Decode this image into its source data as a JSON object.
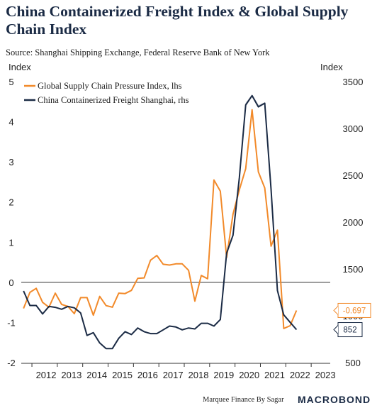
{
  "header": {
    "title": "China Containerized Freight Index & Global Supply Chain Index",
    "source": "Source: Shanghai Shipping Exchange, Federal Reserve Bank of New York"
  },
  "footer": {
    "credit": "Marquee Finance By Sagar",
    "brand": "MACROBOND"
  },
  "colors": {
    "gscpi": "#f28a2a",
    "ccfi": "#1b2b45",
    "ccfi_projection": "#bfc3cc",
    "zero_line": "#333333"
  },
  "chart_data": {
    "type": "line",
    "left_axis_title": "Index",
    "right_axis_title": "Index",
    "x_ticks": [
      "2012",
      "2013",
      "2014",
      "2015",
      "2016",
      "2017",
      "2018",
      "2019",
      "2020",
      "2021",
      "2022",
      "2023"
    ],
    "x_range": [
      2011.58,
      2023.75
    ],
    "left_ylim": [
      -2,
      5
    ],
    "left_ticks": [
      "5",
      "4",
      "3",
      "2",
      "1",
      "0",
      "-1",
      "-2"
    ],
    "right_ylim": [
      500,
      3500
    ],
    "right_ticks": [
      "3500",
      "3000",
      "2500",
      "2000",
      "1500",
      "1000",
      "500"
    ],
    "series": [
      {
        "name": "Global Supply Chain Pressure Index, lhs",
        "axis": "left",
        "color": "#f28a2a",
        "points": [
          [
            2011.67,
            -0.65
          ],
          [
            2011.92,
            -0.25
          ],
          [
            2012.17,
            -0.15
          ],
          [
            2012.42,
            -0.5
          ],
          [
            2012.67,
            -0.62
          ],
          [
            2012.92,
            -0.27
          ],
          [
            2013.17,
            -0.55
          ],
          [
            2013.42,
            -0.6
          ],
          [
            2013.67,
            -0.78
          ],
          [
            2013.92,
            -0.38
          ],
          [
            2014.17,
            -0.38
          ],
          [
            2014.42,
            -0.82
          ],
          [
            2014.67,
            -0.35
          ],
          [
            2014.92,
            -0.58
          ],
          [
            2015.17,
            -0.62
          ],
          [
            2015.42,
            -0.27
          ],
          [
            2015.67,
            -0.28
          ],
          [
            2015.92,
            -0.2
          ],
          [
            2016.17,
            0.1
          ],
          [
            2016.42,
            0.11
          ],
          [
            2016.67,
            0.55
          ],
          [
            2016.92,
            0.67
          ],
          [
            2017.17,
            0.45
          ],
          [
            2017.42,
            0.43
          ],
          [
            2017.67,
            0.46
          ],
          [
            2017.92,
            0.46
          ],
          [
            2018.17,
            0.3
          ],
          [
            2018.42,
            -0.47
          ],
          [
            2018.67,
            0.17
          ],
          [
            2018.92,
            0.09
          ],
          [
            2019.17,
            2.55
          ],
          [
            2019.42,
            2.27
          ],
          [
            2019.67,
            0.62
          ],
          [
            2019.92,
            1.7
          ],
          [
            2020.17,
            2.3
          ],
          [
            2020.42,
            2.83
          ],
          [
            2020.67,
            4.3
          ],
          [
            2020.92,
            2.75
          ],
          [
            2021.17,
            2.35
          ],
          [
            2021.42,
            0.9
          ],
          [
            2021.67,
            1.3
          ],
          [
            2021.92,
            -1.15
          ],
          [
            2022.17,
            -1.08
          ],
          [
            2022.42,
            -0.7
          ]
        ],
        "last_value": "-0.697"
      },
      {
        "name": "China Containerized Freight Shanghai, rhs",
        "axis": "right",
        "color": "#1b2b45",
        "points": [
          [
            2011.67,
            1265
          ],
          [
            2011.92,
            1110
          ],
          [
            2012.17,
            1110
          ],
          [
            2012.42,
            1020
          ],
          [
            2012.67,
            1100
          ],
          [
            2012.92,
            1090
          ],
          [
            2013.17,
            1070
          ],
          [
            2013.42,
            1100
          ],
          [
            2013.67,
            1085
          ],
          [
            2013.92,
            1030
          ],
          [
            2014.17,
            790
          ],
          [
            2014.42,
            820
          ],
          [
            2014.67,
            710
          ],
          [
            2014.92,
            650
          ],
          [
            2015.17,
            650
          ],
          [
            2015.42,
            760
          ],
          [
            2015.67,
            830
          ],
          [
            2015.92,
            800
          ],
          [
            2016.17,
            870
          ],
          [
            2016.42,
            830
          ],
          [
            2016.67,
            810
          ],
          [
            2016.92,
            810
          ],
          [
            2017.17,
            850
          ],
          [
            2017.42,
            890
          ],
          [
            2017.67,
            880
          ],
          [
            2017.92,
            850
          ],
          [
            2018.17,
            870
          ],
          [
            2018.42,
            860
          ],
          [
            2018.67,
            920
          ],
          [
            2018.92,
            920
          ],
          [
            2019.17,
            890
          ],
          [
            2019.42,
            960
          ],
          [
            2019.67,
            1670
          ],
          [
            2019.92,
            1860
          ],
          [
            2020.17,
            2470
          ],
          [
            2020.42,
            3250
          ],
          [
            2020.67,
            3350
          ],
          [
            2020.92,
            3230
          ],
          [
            2021.17,
            3270
          ],
          [
            2021.42,
            2350
          ],
          [
            2021.67,
            1270
          ],
          [
            2021.92,
            1010
          ],
          [
            2022.17,
            930
          ],
          [
            2022.42,
            852
          ]
        ],
        "last_value": "852"
      }
    ],
    "ccfi_projection_points": [
      [
        2020.42,
        3260
      ],
      [
        2020.67,
        3350
      ],
      [
        2020.92,
        3240
      ],
      [
        2021.17,
        3270
      ]
    ]
  }
}
